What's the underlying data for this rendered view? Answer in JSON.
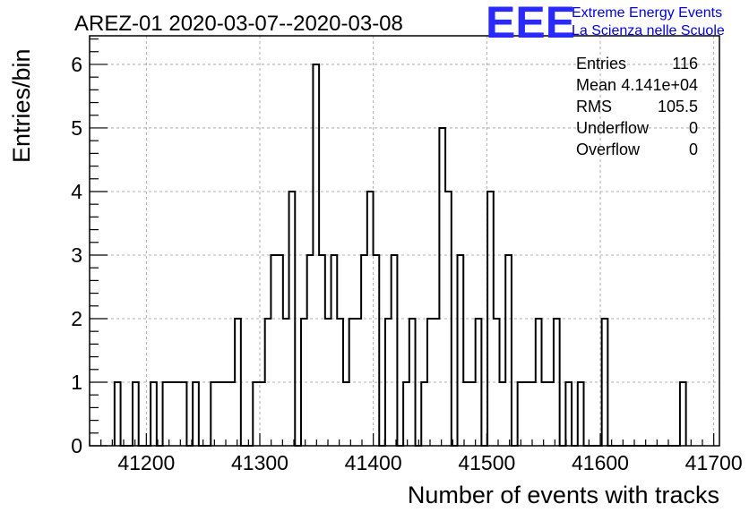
{
  "page": {
    "title": "AREZ-01 2020-03-07--2020-03-08",
    "logo": {
      "mark": "EEE",
      "line1": "Extreme Energy Events",
      "line2": "La Scienza nelle Scuole",
      "color": "#0000dd"
    }
  },
  "stats": [
    {
      "label": "Entries",
      "value": "116"
    },
    {
      "label": "Mean",
      "value": "4.141e+04"
    },
    {
      "label": "RMS",
      "value": "105.5"
    },
    {
      "label": "Underflow",
      "value": "0"
    },
    {
      "label": "Overflow",
      "value": "0"
    }
  ],
  "chart_data": {
    "type": "bar",
    "style": "step-histogram",
    "title": "AREZ-01 2020-03-07--2020-03-08",
    "xlabel": "Number of events with tracks",
    "ylabel": "Entries/bin",
    "xlim": [
      41150,
      41705
    ],
    "ylim": [
      0,
      6.45
    ],
    "xticks": [
      41200,
      41300,
      41400,
      41500,
      41600,
      41700
    ],
    "yticks": [
      0,
      1,
      2,
      3,
      4,
      5,
      6
    ],
    "grid": true,
    "bin_width": 5.3,
    "bins": [
      [
        41172.0,
        1
      ],
      [
        41177.3,
        0
      ],
      [
        41182.6,
        0
      ],
      [
        41187.9,
        1
      ],
      [
        41193.2,
        0
      ],
      [
        41198.5,
        0
      ],
      [
        41203.8,
        1
      ],
      [
        41209.1,
        0
      ],
      [
        41214.4,
        1
      ],
      [
        41219.7,
        1
      ],
      [
        41225.0,
        1
      ],
      [
        41230.3,
        1
      ],
      [
        41235.6,
        0
      ],
      [
        41240.9,
        1
      ],
      [
        41246.2,
        0
      ],
      [
        41251.5,
        0
      ],
      [
        41256.8,
        1
      ],
      [
        41262.1,
        1
      ],
      [
        41267.4,
        1
      ],
      [
        41272.7,
        1
      ],
      [
        41278.0,
        2
      ],
      [
        41283.3,
        0
      ],
      [
        41288.6,
        0
      ],
      [
        41293.9,
        1
      ],
      [
        41299.2,
        1
      ],
      [
        41304.5,
        2
      ],
      [
        41309.8,
        3
      ],
      [
        41315.1,
        3
      ],
      [
        41320.4,
        2
      ],
      [
        41325.7,
        4
      ],
      [
        41331.0,
        0
      ],
      [
        41336.3,
        2
      ],
      [
        41341.6,
        3
      ],
      [
        41346.9,
        6
      ],
      [
        41352.2,
        3
      ],
      [
        41357.5,
        2
      ],
      [
        41362.8,
        3
      ],
      [
        41368.1,
        2
      ],
      [
        41373.4,
        1
      ],
      [
        41378.7,
        2
      ],
      [
        41384.0,
        2
      ],
      [
        41389.3,
        3
      ],
      [
        41394.6,
        4
      ],
      [
        41399.9,
        3
      ],
      [
        41405.2,
        0
      ],
      [
        41410.5,
        2
      ],
      [
        41415.8,
        3
      ],
      [
        41421.1,
        0
      ],
      [
        41426.4,
        1
      ],
      [
        41431.7,
        2
      ],
      [
        41437.0,
        0
      ],
      [
        41442.3,
        1
      ],
      [
        41447.6,
        2
      ],
      [
        41452.9,
        2
      ],
      [
        41458.2,
        5
      ],
      [
        41463.5,
        4
      ],
      [
        41468.8,
        0
      ],
      [
        41474.1,
        3
      ],
      [
        41479.4,
        1
      ],
      [
        41484.7,
        1
      ],
      [
        41490.0,
        2
      ],
      [
        41495.3,
        0
      ],
      [
        41500.6,
        4
      ],
      [
        41505.9,
        2
      ],
      [
        41511.2,
        1
      ],
      [
        41516.5,
        3
      ],
      [
        41521.8,
        0
      ],
      [
        41527.1,
        1
      ],
      [
        41532.4,
        1
      ],
      [
        41537.7,
        1
      ],
      [
        41543.0,
        2
      ],
      [
        41548.3,
        1
      ],
      [
        41553.6,
        1
      ],
      [
        41558.9,
        2
      ],
      [
        41564.2,
        0
      ],
      [
        41569.5,
        1
      ],
      [
        41574.8,
        0
      ],
      [
        41580.1,
        1
      ],
      [
        41585.4,
        0
      ],
      [
        41590.7,
        0
      ],
      [
        41596.0,
        0
      ],
      [
        41601.3,
        2
      ],
      [
        41606.6,
        0
      ],
      [
        41611.9,
        0
      ],
      [
        41617.2,
        0
      ],
      [
        41622.5,
        0
      ],
      [
        41627.8,
        0
      ],
      [
        41633.1,
        0
      ],
      [
        41638.4,
        0
      ],
      [
        41643.7,
        0
      ],
      [
        41649.0,
        0
      ],
      [
        41654.3,
        0
      ],
      [
        41659.6,
        0
      ],
      [
        41664.9,
        0
      ],
      [
        41670.2,
        1
      ]
    ]
  }
}
